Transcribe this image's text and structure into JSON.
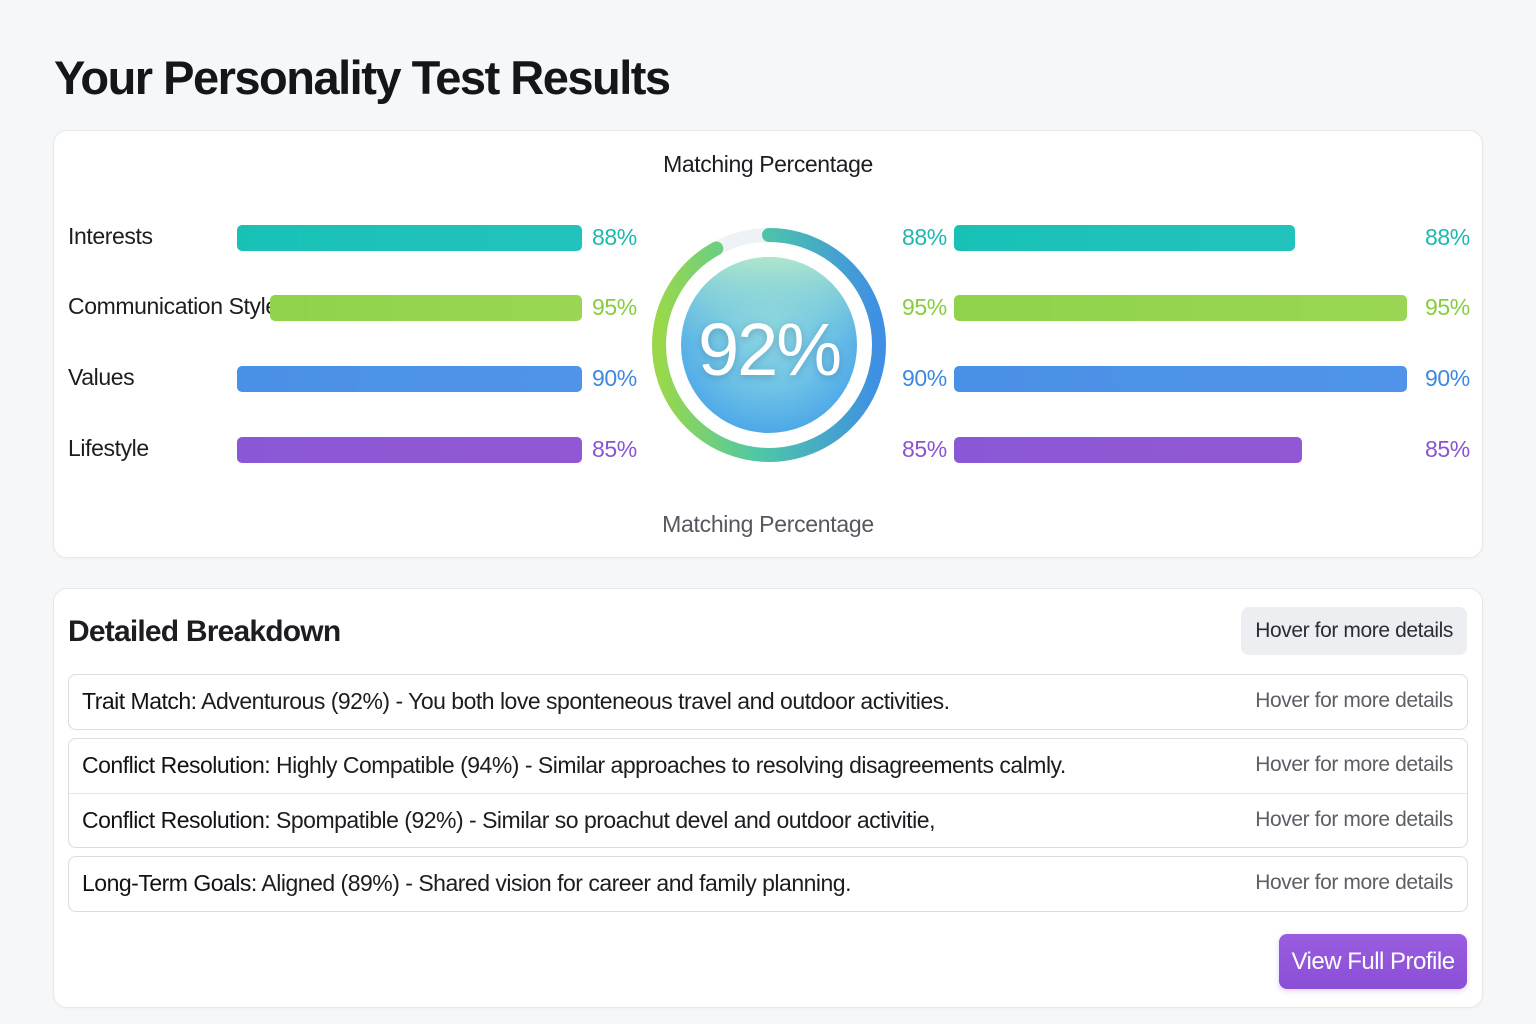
{
  "page": {
    "title": "Your Personality Test Results"
  },
  "summary": {
    "gauge_title": "Matching Percentage",
    "gauge_value": "92%",
    "gauge_fraction": 0.92,
    "gauge_caption": "Matching Percentage",
    "left_traits": [
      {
        "label": "Interests",
        "pct": "88%",
        "value": 88,
        "color": "teal"
      },
      {
        "label": "Communication Style",
        "pct": "95%",
        "value": 95,
        "color": "green"
      },
      {
        "label": "Values",
        "pct": "90%",
        "value": 90,
        "color": "blue"
      },
      {
        "label": "Lifestyle",
        "pct": "85%",
        "value": 85,
        "color": "purple"
      }
    ],
    "right_traits": [
      {
        "pct_left": "88%",
        "pct_right": "88%",
        "value": 88,
        "color": "teal"
      },
      {
        "pct_left": "95%",
        "pct_right": "95%",
        "value": 95,
        "color": "green"
      },
      {
        "pct_left": "90%",
        "pct_right": "90%",
        "value": 90,
        "color": "blue"
      },
      {
        "pct_left": "85%",
        "pct_right": "85%",
        "value": 85,
        "color": "purple"
      }
    ]
  },
  "breakdown": {
    "title": "Detailed Breakdown",
    "hover_pill": "Hover for more details",
    "rows": [
      {
        "label": "Trait Match:",
        "text": " Adventurous (92%) - You both love sponteneous travel and outdoor activities.",
        "hint": "Hover for more details"
      },
      {
        "label": "Conflict Resolution:",
        "text": " Highly Compatible (94%) - Similar approaches to resolving disagreements calmly.",
        "hint": "Hover for more details"
      },
      {
        "label": "Conflict Resolution:",
        "text": " Spompatible (92%) - Similar so proachut devel and outdoor activitie,",
        "hint": "Hover for more details"
      },
      {
        "label": "Long-Term Goals:",
        "text": " Aligned (89%) - Shared vision for career and family planning.",
        "hint": "Hover for more details"
      }
    ],
    "view_button": "View Full Profile"
  },
  "colors": {
    "teal": "#1db8b0",
    "green": "#88cc3e",
    "blue": "#3f88e2",
    "purple": "#8a54d0",
    "button": "#8a4fd6"
  }
}
